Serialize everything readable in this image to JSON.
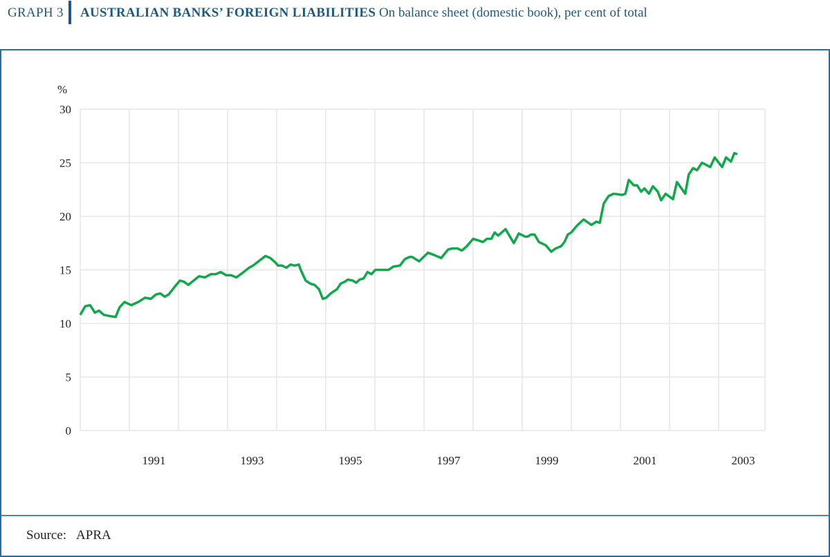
{
  "header": {
    "graph_number": "GRAPH 3",
    "title": "AUSTRALIAN BANKS’ FOREIGN LIABILITIES",
    "subtitle": "On balance sheet (domestic book), per cent of total"
  },
  "source": {
    "label": "Source:",
    "value": "APRA"
  },
  "colors": {
    "line": "#10a84a",
    "accent": "#1a5a85",
    "grid": "#e6e6e6"
  },
  "chart_data": {
    "type": "line",
    "title": "AUSTRALIAN BANKS’ FOREIGN LIABILITIES",
    "subtitle": "On balance sheet (domestic book), per cent of total",
    "ylabel": "%",
    "xlabel": "",
    "xlim": [
      1990,
      2004
    ],
    "ylim": [
      0,
      30
    ],
    "yticks": [
      0,
      5,
      10,
      15,
      20,
      25,
      30
    ],
    "xtick_labels": [
      "1991",
      "1993",
      "1995",
      "1997",
      "1999",
      "2001",
      "2003"
    ],
    "grid": true,
    "legend": "none",
    "series": [
      {
        "x": [
          1990.0,
          1990.1,
          1990.2,
          1990.3,
          1990.38,
          1990.48,
          1990.58,
          1990.72,
          1990.8,
          1990.9,
          1991.04,
          1991.18,
          1991.32,
          1991.44,
          1991.54,
          1991.63,
          1991.72,
          1991.8,
          1991.92,
          1992.03,
          1992.11,
          1992.2,
          1992.31,
          1992.42,
          1992.54,
          1992.66,
          1992.76,
          1992.86,
          1992.97,
          1993.07,
          1993.18,
          1993.3,
          1993.44,
          1993.52,
          1993.66,
          1993.77,
          1993.87,
          1993.97,
          1994.03,
          1994.11,
          1994.2,
          1994.28,
          1994.37,
          1994.45,
          1994.49,
          1994.59,
          1994.69,
          1994.77,
          1994.86,
          1994.94,
          1995.01,
          1995.1,
          1995.23,
          1995.3,
          1995.39,
          1995.45,
          1995.55,
          1995.62,
          1995.69,
          1995.77,
          1995.85,
          1995.93,
          1996.01,
          1996.1,
          1996.2,
          1996.28,
          1996.37,
          1996.51,
          1996.61,
          1996.7,
          1996.76,
          1996.9,
          1997.08,
          1997.2,
          1997.35,
          1997.49,
          1997.58,
          1997.68,
          1997.77,
          1997.87,
          1998.0,
          1998.14,
          1998.2,
          1998.28,
          1998.37,
          1998.44,
          1998.51,
          1998.66,
          1998.83,
          1998.93,
          1999.06,
          1999.11,
          1999.18,
          1999.25,
          1999.34,
          1999.48,
          1999.59,
          1999.68,
          1999.79,
          1999.86,
          1999.93,
          2000.0,
          2000.13,
          2000.25,
          2000.41,
          2000.51,
          2000.58,
          2000.66,
          2000.76,
          2000.86,
          2001.04,
          2001.1,
          2001.17,
          2001.27,
          2001.34,
          2001.42,
          2001.49,
          2001.58,
          2001.66,
          2001.76,
          2001.83,
          2001.92,
          2002.07,
          2002.15,
          2002.32,
          2002.39,
          2002.48,
          2002.56,
          2002.66,
          2002.83,
          2002.92,
          2003.07,
          2003.15,
          2003.25,
          2003.32,
          2003.38
        ],
        "y": [
          10.8,
          11.6,
          11.7,
          11.0,
          11.2,
          10.8,
          10.7,
          10.6,
          11.5,
          12.0,
          11.7,
          12.0,
          12.4,
          12.3,
          12.7,
          12.8,
          12.5,
          12.7,
          13.4,
          14.0,
          13.9,
          13.6,
          14.0,
          14.4,
          14.3,
          14.6,
          14.6,
          14.8,
          14.5,
          14.5,
          14.3,
          14.7,
          15.2,
          15.4,
          15.9,
          16.3,
          16.1,
          15.7,
          15.4,
          15.4,
          15.2,
          15.5,
          15.4,
          15.5,
          15.0,
          14.0,
          13.7,
          13.6,
          13.2,
          12.3,
          12.4,
          12.8,
          13.2,
          13.7,
          13.9,
          14.1,
          14.0,
          13.8,
          14.1,
          14.2,
          14.8,
          14.6,
          15.0,
          15.0,
          15.0,
          15.0,
          15.3,
          15.4,
          16.0,
          16.2,
          16.2,
          15.8,
          16.6,
          16.4,
          16.1,
          16.9,
          17.0,
          17.0,
          16.8,
          17.2,
          17.9,
          17.7,
          17.6,
          17.9,
          17.9,
          18.5,
          18.2,
          18.8,
          17.5,
          18.4,
          18.1,
          18.1,
          18.3,
          18.3,
          17.6,
          17.3,
          16.7,
          17.0,
          17.2,
          17.6,
          18.3,
          18.5,
          19.2,
          19.7,
          19.2,
          19.5,
          19.4,
          21.2,
          21.9,
          22.1,
          22.0,
          22.1,
          23.4,
          22.9,
          22.9,
          22.3,
          22.6,
          22.1,
          22.8,
          22.3,
          21.5,
          22.1,
          21.6,
          23.2,
          22.1,
          23.9,
          24.5,
          24.3,
          25.0,
          24.6,
          25.5,
          24.6,
          25.5,
          25.1,
          25.9,
          25.8
        ]
      }
    ]
  }
}
